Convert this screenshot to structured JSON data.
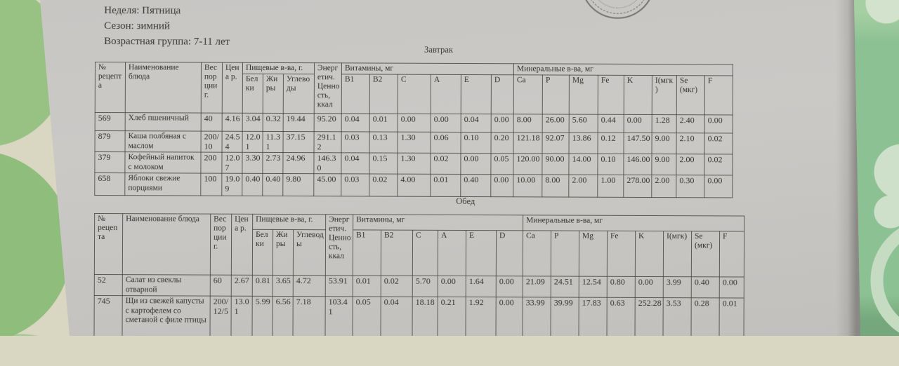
{
  "document": {
    "week": "Неделя: Пятница",
    "season": "Сезон: зимний",
    "age_group": "Возрастная группа: 7-11 лет"
  },
  "table_headers": {
    "recipe_no": "№ рецепта",
    "dish_name": "Наименование блюда",
    "portion_weight": "Вес порции г.",
    "price": "Цена р.",
    "nutrients_group": "Пищевые в-ва, г.",
    "protein": "Белки",
    "fat": "Жиры",
    "carbs": "Углеводы",
    "energy": "Энергетич. Ценность, ккал",
    "vitamins_group": "Витамины, мг",
    "b1": "B1",
    "b2": "B2",
    "c": "C",
    "a": "A",
    "e": "E",
    "d": "D",
    "minerals_group": "Минеральные в-ва, мг",
    "ca": "Ca",
    "p": "P",
    "mg": "Mg",
    "fe": "Fe",
    "k": "K",
    "iodine": "I(мгк)",
    "selenium": "Se (мкг)",
    "fluorine": "F"
  },
  "breakfast": {
    "title": "Завтрак",
    "rows": [
      [
        "569",
        "Хлеб пшеничный",
        "40",
        "4.16",
        "3.04",
        "0.32",
        "19.44",
        "95.20",
        "0.04",
        "0.01",
        "0.00",
        "0.00",
        "0.04",
        "0.00",
        "8.00",
        "26.00",
        "5.60",
        "0.44",
        "0.00",
        "1.28",
        "2.40",
        "0.00"
      ],
      [
        "879",
        "Каша полбяная с маслом",
        "200/10",
        "24.54",
        "12.01",
        "11.31",
        "37.15",
        "291.12",
        "0.03",
        "0.13",
        "1.30",
        "0.06",
        "0.10",
        "0.20",
        "121.18",
        "92.07",
        "13.86",
        "0.12",
        "147.50",
        "9.00",
        "2.10",
        "0.02"
      ],
      [
        "379",
        "Кофейный напиток с молоком",
        "200",
        "12.07",
        "3.30",
        "2.73",
        "24.96",
        "146.30",
        "0.04",
        "0.15",
        "1.30",
        "0.02",
        "0.00",
        "0.05",
        "120.00",
        "90.00",
        "14.00",
        "0.10",
        "146.00",
        "9.00",
        "2.00",
        "0.02"
      ],
      [
        "658",
        "Яблоки свежие порциями",
        "100",
        "19.09",
        "0.40",
        "0.40",
        "9.80",
        "45.00",
        "0.03",
        "0.02",
        "4.00",
        "0.01",
        "0.40",
        "0.00",
        "10.00",
        "8.00",
        "2.00",
        "1.00",
        "278.00",
        "2.00",
        "0.30",
        "0.00"
      ]
    ]
  },
  "lunch": {
    "title": "Обед",
    "rows": [
      [
        "52",
        "Салат из свеклы отварной",
        "60",
        "2.67",
        "0.81",
        "3.65",
        "4.72",
        "53.91",
        "0.01",
        "0.02",
        "5.70",
        "0.00",
        "1.64",
        "0.00",
        "21.09",
        "24.51",
        "12.54",
        "0.80",
        "0.00",
        "3.99",
        "0.40",
        "0.00"
      ],
      [
        "745",
        "Щи из свежей капусты с картофелем со сметаной с филе птицы",
        "200/12/5",
        "13.01",
        "5.99",
        "6.56",
        "7.18",
        "103.41",
        "0.05",
        "0.04",
        "18.18",
        "0.21",
        "1.92",
        "0.00",
        "33.99",
        "39.99",
        "17.83",
        "0.63",
        "252.28",
        "3.53",
        "0.28",
        "0.01"
      ]
    ]
  }
}
